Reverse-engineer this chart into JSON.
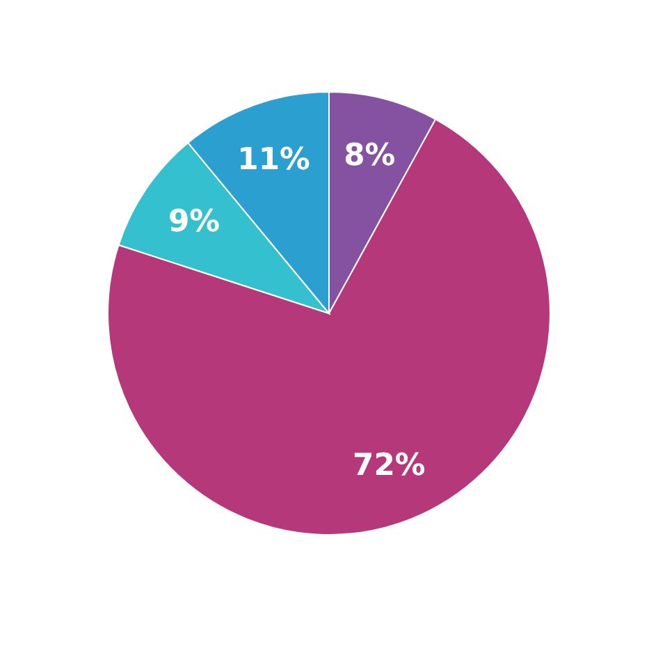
{
  "chart_data": {
    "type": "pie",
    "categories": [
      null,
      null,
      null,
      null
    ],
    "values": [
      8,
      72,
      9,
      11
    ],
    "value_labels": [
      "8%",
      "72%",
      "9%",
      "11%"
    ],
    "colors": [
      "#8552a1",
      "#b5387a",
      "#35c0d0",
      "#2b9fd0"
    ]
  }
}
